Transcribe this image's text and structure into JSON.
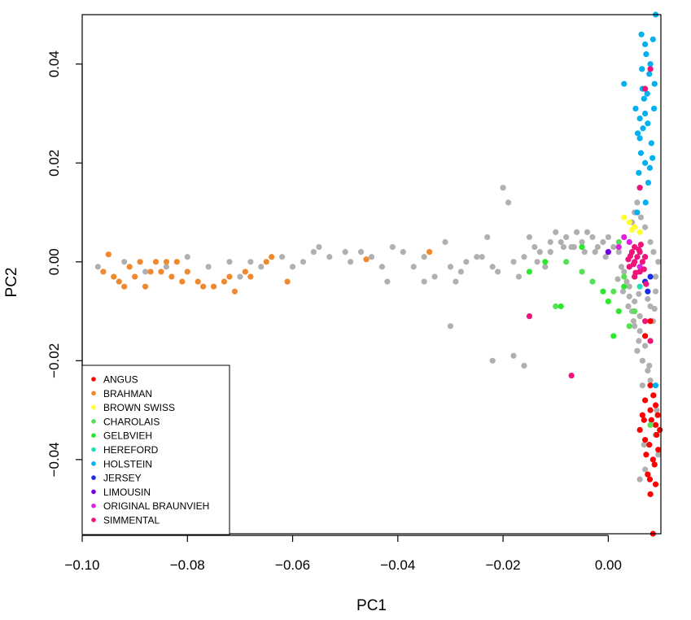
{
  "chart_data": {
    "type": "scatter",
    "xlabel": "PC1",
    "ylabel": "PC2",
    "xlim": [
      -0.1,
      0.01
    ],
    "ylim": [
      -0.055,
      0.05
    ],
    "x_ticks": [
      -0.1,
      -0.08,
      -0.06,
      -0.04,
      -0.02,
      0.0
    ],
    "x_tick_labels": [
      "−0.10",
      "−0.08",
      "−0.06",
      "−0.04",
      "−0.02",
      "0.00"
    ],
    "y_ticks": [
      -0.04,
      -0.02,
      0.0,
      0.02,
      0.04
    ],
    "y_tick_labels": [
      "−0.04",
      "−0.02",
      "0.00",
      "0.02",
      "0.04"
    ],
    "legend_position": "bottom-left",
    "unlabeled_color": "#b0b0b0",
    "series": [
      {
        "name": "ANGUS",
        "color": "#ff0000"
      },
      {
        "name": "BRAHMAN",
        "color": "#f0882e"
      },
      {
        "name": "BROWN SWISS",
        "color": "#ffff33"
      },
      {
        "name": "CHAROLAIS",
        "color": "#55e055"
      },
      {
        "name": "GELBVIEH",
        "color": "#2ce82c"
      },
      {
        "name": "HEREFORD",
        "color": "#22e0b4"
      },
      {
        "name": "HOLSTEIN",
        "color": "#00b0f0"
      },
      {
        "name": "JERSEY",
        "color": "#1a2ee8"
      },
      {
        "name": "LIMOUSIN",
        "color": "#7000e0"
      },
      {
        "name": "ORIGINAL BRAUNVIEH",
        "color": "#e020e0"
      },
      {
        "name": "SIMMENTAL",
        "color": "#f0147a"
      }
    ],
    "points": {
      "ANGUS": [
        [
          0.008,
          -0.03
        ],
        [
          0.009,
          -0.033
        ],
        [
          0.007,
          -0.036
        ],
        [
          0.0085,
          -0.04
        ],
        [
          0.009,
          -0.045
        ],
        [
          0.008,
          -0.047
        ],
        [
          0.0085,
          -0.055
        ],
        [
          0.007,
          -0.028
        ],
        [
          0.0095,
          -0.038
        ],
        [
          0.006,
          -0.034
        ],
        [
          0.008,
          -0.025
        ],
        [
          0.0075,
          -0.043
        ],
        [
          0.009,
          -0.029
        ],
        [
          0.0065,
          -0.031
        ],
        [
          0.0088,
          -0.041
        ],
        [
          0.0078,
          -0.037
        ],
        [
          0.0092,
          -0.035
        ],
        [
          0.007,
          -0.015
        ],
        [
          0.008,
          -0.012
        ],
        [
          0.0082,
          -0.032
        ],
        [
          0.0072,
          -0.039
        ],
        [
          0.0098,
          -0.034
        ],
        [
          0.0086,
          -0.027
        ],
        [
          0.0079,
          -0.044
        ],
        [
          0.0068,
          -0.032
        ],
        [
          0.0094,
          -0.031
        ]
      ],
      "BRAHMAN": [
        [
          -0.095,
          0.0015
        ],
        [
          -0.09,
          -0.003
        ],
        [
          -0.085,
          -0.002
        ],
        [
          -0.082,
          0.0
        ],
        [
          -0.078,
          -0.004
        ],
        [
          -0.075,
          -0.005
        ],
        [
          -0.071,
          -0.006
        ],
        [
          -0.068,
          -0.003
        ],
        [
          -0.065,
          0.0
        ],
        [
          -0.061,
          -0.004
        ],
        [
          -0.064,
          0.001
        ],
        [
          -0.046,
          0.0005
        ],
        [
          -0.034,
          0.002
        ],
        [
          -0.093,
          -0.004
        ],
        [
          -0.088,
          -0.005
        ],
        [
          -0.086,
          0.0
        ],
        [
          -0.083,
          -0.003
        ],
        [
          -0.08,
          -0.002
        ],
        [
          -0.077,
          -0.005
        ],
        [
          -0.073,
          -0.004
        ],
        [
          -0.091,
          -0.001
        ],
        [
          -0.087,
          -0.002
        ],
        [
          -0.084,
          0.0
        ],
        [
          -0.096,
          -0.002
        ],
        [
          -0.092,
          -0.005
        ],
        [
          -0.081,
          -0.004
        ],
        [
          -0.072,
          -0.003
        ],
        [
          -0.069,
          -0.002
        ],
        [
          -0.089,
          0.0
        ],
        [
          -0.094,
          -0.003
        ]
      ],
      "BROWN SWISS": [
        [
          0.004,
          0.008
        ],
        [
          0.005,
          0.007
        ],
        [
          0.006,
          0.006
        ],
        [
          0.003,
          0.009
        ],
        [
          0.0045,
          0.0065
        ]
      ],
      "CHAROLAIS": [
        [
          -0.005,
          -0.002
        ],
        [
          -0.003,
          -0.004
        ],
        [
          0.001,
          -0.006
        ],
        [
          0.003,
          -0.003
        ],
        [
          -0.008,
          0.0
        ],
        [
          0.002,
          0.004
        ],
        [
          -0.01,
          -0.009
        ],
        [
          0.004,
          -0.013
        ],
        [
          0.008,
          -0.033
        ],
        [
          0.005,
          -0.01
        ]
      ],
      "GELBVIEH": [
        [
          -0.012,
          0.0
        ],
        [
          -0.015,
          -0.002
        ],
        [
          -0.009,
          -0.009
        ],
        [
          0.0,
          -0.008
        ],
        [
          0.003,
          -0.005
        ],
        [
          0.001,
          -0.015
        ],
        [
          -0.005,
          0.003
        ],
        [
          -0.001,
          -0.006
        ],
        [
          0.002,
          -0.01
        ]
      ],
      "HEREFORD": [
        [
          0.005,
          -0.003
        ],
        [
          0.006,
          -0.005
        ],
        [
          0.004,
          -0.001
        ]
      ],
      "HOLSTEIN": [
        [
          0.007,
          0.02
        ],
        [
          0.006,
          0.025
        ],
        [
          0.007,
          0.03
        ],
        [
          0.0065,
          0.035
        ],
        [
          0.008,
          0.04
        ],
        [
          0.0085,
          0.045
        ],
        [
          0.009,
          0.05
        ],
        [
          0.006,
          0.015
        ],
        [
          0.0055,
          0.01
        ],
        [
          0.0075,
          0.028
        ],
        [
          0.0068,
          0.033
        ],
        [
          0.0078,
          0.038
        ],
        [
          0.0062,
          0.022
        ],
        [
          0.0072,
          0.042
        ],
        [
          0.0058,
          0.018
        ],
        [
          0.0088,
          0.036
        ],
        [
          0.0052,
          0.031
        ],
        [
          0.0082,
          0.024
        ],
        [
          0.0066,
          0.027
        ],
        [
          0.007,
          0.044
        ],
        [
          0.0076,
          0.016
        ],
        [
          0.0064,
          0.039
        ],
        [
          0.0084,
          0.021
        ],
        [
          0.006,
          0.029
        ],
        [
          0.0074,
          0.034
        ],
        [
          0.0071,
          0.012
        ],
        [
          0.0063,
          0.046
        ],
        [
          0.0087,
          0.031
        ],
        [
          0.0056,
          0.026
        ],
        [
          0.0079,
          0.019
        ],
        [
          0.003,
          0.036
        ],
        [
          0.009,
          -0.025
        ]
      ],
      "JERSEY": [
        [
          0.008,
          -0.003
        ],
        [
          0.0075,
          -0.006
        ],
        [
          0.007,
          -0.004
        ]
      ],
      "LIMOUSIN": [
        [
          0.0,
          0.002
        ],
        [
          0.006,
          -0.002
        ],
        [
          0.007,
          0.001
        ]
      ],
      "ORIGINAL BRAUNVIEH": [
        [
          0.003,
          0.005
        ],
        [
          0.002,
          0.003
        ],
        [
          0.004,
          0.004
        ],
        [
          0.006,
          -0.001
        ]
      ],
      "SIMMENTAL": [
        [
          0.005,
          0.0
        ],
        [
          0.006,
          0.002
        ],
        [
          0.004,
          -0.001
        ],
        [
          0.005,
          0.003
        ],
        [
          0.006,
          -0.002
        ],
        [
          0.0055,
          0.001
        ],
        [
          0.0045,
          0.002
        ],
        [
          0.0065,
          0.0
        ],
        [
          0.005,
          -0.003
        ],
        [
          0.007,
          0.001
        ],
        [
          0.0048,
          -0.0005
        ],
        [
          0.0058,
          0.0025
        ],
        [
          0.0068,
          -0.0015
        ],
        [
          0.0042,
          0.0012
        ],
        [
          0.0062,
          0.0035
        ],
        [
          0.0052,
          -0.0022
        ],
        [
          0.008,
          0.039
        ],
        [
          0.007,
          0.035
        ],
        [
          0.006,
          0.015
        ],
        [
          -0.015,
          -0.011
        ],
        [
          -0.007,
          -0.023
        ],
        [
          0.008,
          -0.016
        ],
        [
          0.007,
          -0.012
        ],
        [
          0.0072,
          -0.0045
        ],
        [
          0.0038,
          0.0005
        ]
      ],
      "unlabeled": [
        [
          -0.097,
          -0.001
        ],
        [
          -0.092,
          0.0
        ],
        [
          -0.088,
          -0.002
        ],
        [
          -0.084,
          -0.001
        ],
        [
          -0.08,
          0.001
        ],
        [
          -0.076,
          -0.001
        ],
        [
          -0.072,
          0.0
        ],
        [
          -0.07,
          -0.003
        ],
        [
          -0.068,
          0.0
        ],
        [
          -0.066,
          -0.001
        ],
        [
          -0.062,
          0.001
        ],
        [
          -0.06,
          -0.001
        ],
        [
          -0.058,
          0.0
        ],
        [
          -0.056,
          0.002
        ],
        [
          -0.055,
          0.003
        ],
        [
          -0.053,
          0.001
        ],
        [
          -0.05,
          0.002
        ],
        [
          -0.049,
          0.0
        ],
        [
          -0.047,
          0.002
        ],
        [
          -0.045,
          0.001
        ],
        [
          -0.043,
          -0.001
        ],
        [
          -0.041,
          0.003
        ],
        [
          -0.039,
          0.002
        ],
        [
          -0.037,
          -0.001
        ],
        [
          -0.035,
          0.001
        ],
        [
          -0.033,
          -0.003
        ],
        [
          -0.031,
          0.004
        ],
        [
          -0.03,
          -0.001
        ],
        [
          -0.029,
          -0.004
        ],
        [
          -0.028,
          -0.002
        ],
        [
          -0.027,
          0.0
        ],
        [
          -0.025,
          0.001
        ],
        [
          -0.023,
          0.005
        ],
        [
          -0.022,
          -0.001
        ],
        [
          -0.021,
          -0.002
        ],
        [
          -0.02,
          0.015
        ],
        [
          -0.019,
          0.012
        ],
        [
          -0.018,
          0.0
        ],
        [
          -0.017,
          -0.003
        ],
        [
          -0.016,
          0.001
        ],
        [
          -0.015,
          0.005
        ],
        [
          -0.014,
          0.003
        ],
        [
          -0.013,
          0.002
        ],
        [
          -0.012,
          -0.001
        ],
        [
          -0.011,
          0.004
        ],
        [
          -0.01,
          0.006
        ],
        [
          -0.009,
          0.004
        ],
        [
          -0.008,
          0.005
        ],
        [
          -0.007,
          0.003
        ],
        [
          -0.006,
          0.006
        ],
        [
          -0.005,
          0.004
        ],
        [
          -0.004,
          0.006
        ],
        [
          -0.003,
          0.005
        ],
        [
          -0.002,
          0.003
        ],
        [
          -0.001,
          0.004
        ],
        [
          0.0,
          0.005
        ],
        [
          0.001,
          0.003
        ],
        [
          0.002,
          0.002
        ],
        [
          -0.022,
          -0.02
        ],
        [
          -0.018,
          -0.019
        ],
        [
          -0.016,
          -0.021
        ],
        [
          -0.03,
          -0.013
        ],
        [
          -0.035,
          -0.004
        ],
        [
          -0.042,
          -0.004
        ],
        [
          -0.024,
          0.001
        ],
        [
          0.003,
          -0.002
        ],
        [
          0.004,
          -0.005
        ],
        [
          0.005,
          -0.008
        ],
        [
          0.006,
          -0.011
        ],
        [
          0.006,
          -0.014
        ],
        [
          0.007,
          -0.017
        ],
        [
          0.0065,
          -0.02
        ],
        [
          0.0075,
          -0.022
        ],
        [
          0.008,
          -0.024
        ],
        [
          0.0085,
          -0.027
        ],
        [
          0.009,
          -0.035
        ],
        [
          0.0095,
          -0.039
        ],
        [
          0.007,
          -0.042
        ],
        [
          0.006,
          -0.044
        ],
        [
          0.0055,
          -0.018
        ],
        [
          0.005,
          -0.013
        ],
        [
          0.0045,
          -0.01
        ],
        [
          0.004,
          -0.007
        ],
        [
          0.008,
          -0.009
        ],
        [
          0.0085,
          -0.012
        ],
        [
          0.009,
          -0.006
        ],
        [
          0.009,
          -0.003
        ],
        [
          0.0095,
          0.0
        ],
        [
          0.0035,
          -0.004
        ],
        [
          0.0025,
          -0.001
        ],
        [
          0.0065,
          -0.025
        ],
        [
          0.0078,
          -0.021
        ],
        [
          0.0092,
          -0.03
        ],
        [
          0.0068,
          -0.037
        ],
        [
          0.0058,
          -0.016
        ],
        [
          0.005,
          0.01
        ],
        [
          0.0055,
          0.012
        ],
        [
          0.0045,
          0.008
        ],
        [
          0.0062,
          0.009
        ],
        [
          0.007,
          0.007
        ],
        [
          0.008,
          0.004
        ],
        [
          0.0086,
          0.002
        ],
        [
          -0.0005,
          0.001
        ],
        [
          -0.0025,
          0.002
        ],
        [
          -0.0045,
          0.002
        ],
        [
          -0.0065,
          0.003
        ],
        [
          -0.0085,
          0.003
        ],
        [
          -0.011,
          0.002
        ],
        [
          -0.0135,
          0.0
        ],
        [
          0.0018,
          -0.0035
        ],
        [
          0.0028,
          -0.006
        ],
        [
          0.0038,
          -0.009
        ],
        [
          0.0048,
          -0.012
        ],
        [
          0.0058,
          -0.0065
        ],
        [
          0.0075,
          -0.0075
        ],
        [
          0.0088,
          -0.0095
        ]
      ]
    }
  }
}
